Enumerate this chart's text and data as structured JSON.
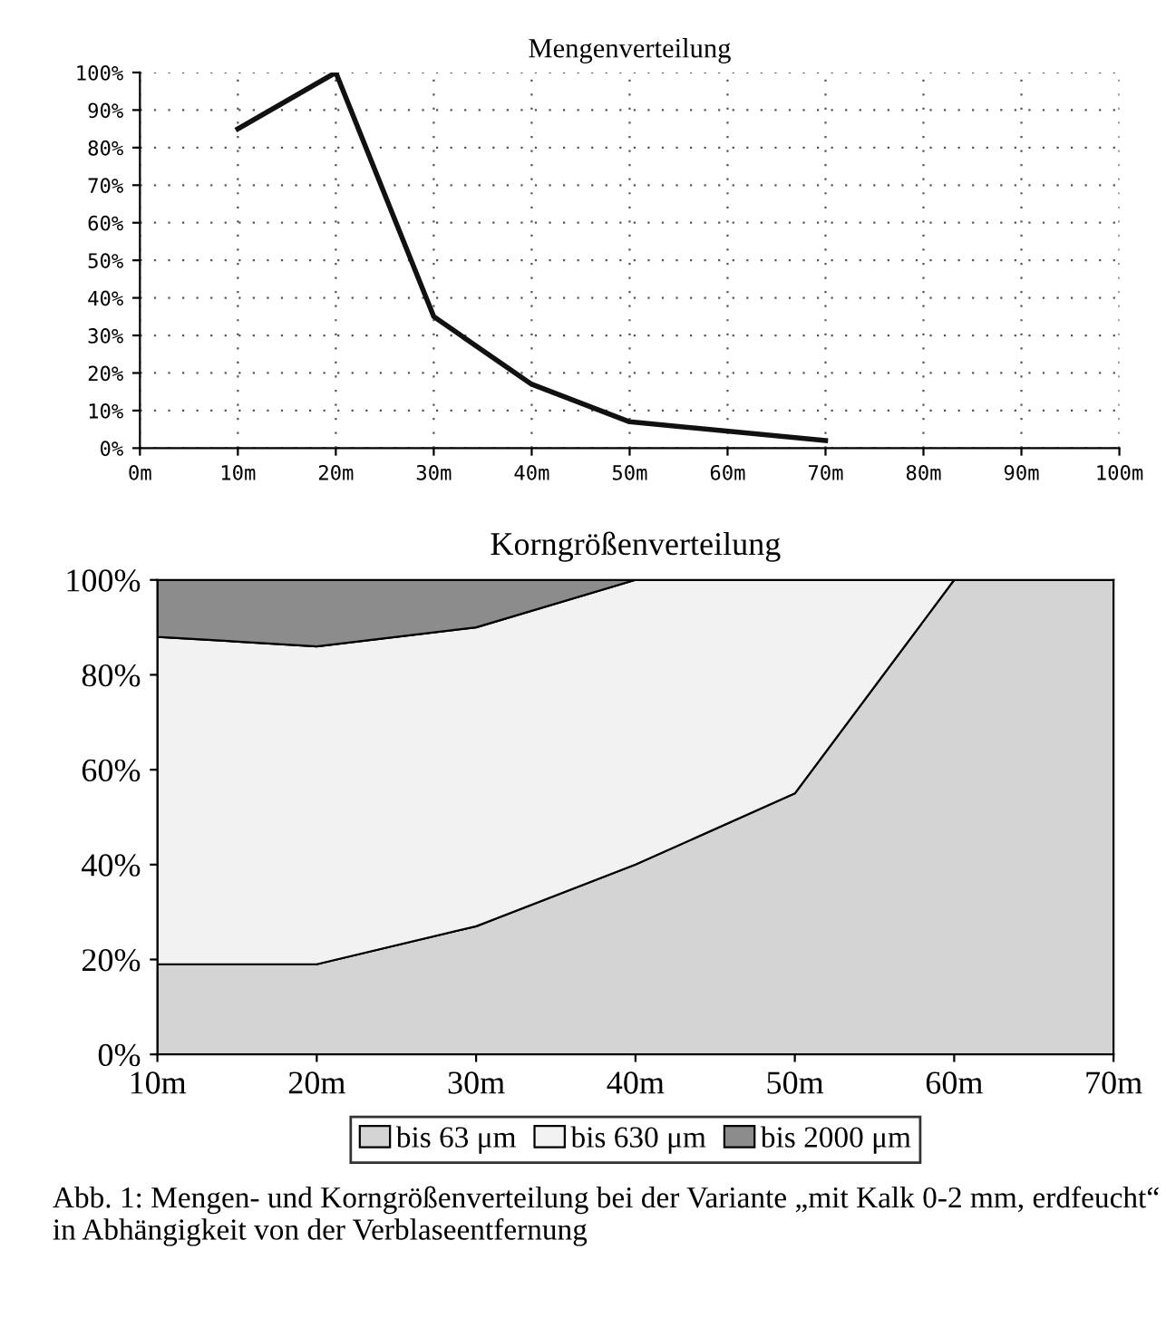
{
  "chart_data": [
    {
      "type": "line",
      "title": "Mengenverteilung",
      "x": [
        10,
        20,
        30,
        40,
        50,
        70
      ],
      "series": [
        {
          "color": "#111111",
          "values": [
            85,
            100,
            35,
            17,
            7,
            2
          ]
        }
      ],
      "xlim": [
        0,
        100
      ],
      "xticks": [
        {
          "value": 0,
          "label": "0m"
        },
        {
          "value": 10,
          "label": "10m"
        },
        {
          "value": 20,
          "label": "20m"
        },
        {
          "value": 30,
          "label": "30m"
        },
        {
          "value": 40,
          "label": "40m"
        },
        {
          "value": 50,
          "label": "50m"
        },
        {
          "value": 60,
          "label": "60m"
        },
        {
          "value": 70,
          "label": "70m"
        },
        {
          "value": 80,
          "label": "80m"
        },
        {
          "value": 90,
          "label": "90m"
        },
        {
          "value": 100,
          "label": "100m"
        }
      ],
      "ylim": [
        0,
        100
      ],
      "yticks": [
        {
          "value": 0,
          "label": "0%"
        },
        {
          "value": 10,
          "label": "10%"
        },
        {
          "value": 20,
          "label": "20%"
        },
        {
          "value": 30,
          "label": "30%"
        },
        {
          "value": 40,
          "label": "40%"
        },
        {
          "value": 50,
          "label": "50%"
        },
        {
          "value": 60,
          "label": "60%"
        },
        {
          "value": 70,
          "label": "70%"
        },
        {
          "value": 80,
          "label": "80%"
        },
        {
          "value": 90,
          "label": "90%"
        },
        {
          "value": 100,
          "label": "100%"
        }
      ],
      "grid": true,
      "line_style": "solid",
      "marker": "none"
    },
    {
      "type": "area",
      "stacked": true,
      "title": "Korngrößenverteilung",
      "x": [
        10,
        20,
        30,
        40,
        50,
        60,
        70
      ],
      "series": [
        {
          "name": "bis 63 μm",
          "color": "#d4d4d4",
          "values": [
            19,
            19,
            27,
            40,
            55,
            100,
            100
          ]
        },
        {
          "name": "bis 630 μm",
          "color": "#f2f2f2",
          "values": [
            69,
            67,
            63,
            60,
            45,
            0,
            0
          ]
        },
        {
          "name": "bis 2000 μm",
          "color": "#8c8c8c",
          "values": [
            12,
            14,
            10,
            0,
            0,
            0,
            0
          ]
        }
      ],
      "xlim": [
        10,
        70
      ],
      "xticks": [
        {
          "value": 10,
          "label": "10m"
        },
        {
          "value": 20,
          "label": "20m"
        },
        {
          "value": 30,
          "label": "30m"
        },
        {
          "value": 40,
          "label": "40m"
        },
        {
          "value": 50,
          "label": "50m"
        },
        {
          "value": 60,
          "label": "60m"
        },
        {
          "value": 70,
          "label": "70m"
        }
      ],
      "ylim": [
        0,
        100
      ],
      "yticks": [
        {
          "value": 0,
          "label": "0%"
        },
        {
          "value": 20,
          "label": "20%"
        },
        {
          "value": 40,
          "label": "40%"
        },
        {
          "value": 60,
          "label": "60%"
        },
        {
          "value": 80,
          "label": "80%"
        },
        {
          "value": 100,
          "label": "100%"
        }
      ],
      "legend": "bottom",
      "annotations": [
        "Abb. 1: Mengen- und Korngrößenverteilung bei der Variante „mit Kalk 0-2 mm, erdfeucht“ in Abhängigkeit von der Verblaseentfernung"
      ]
    }
  ]
}
